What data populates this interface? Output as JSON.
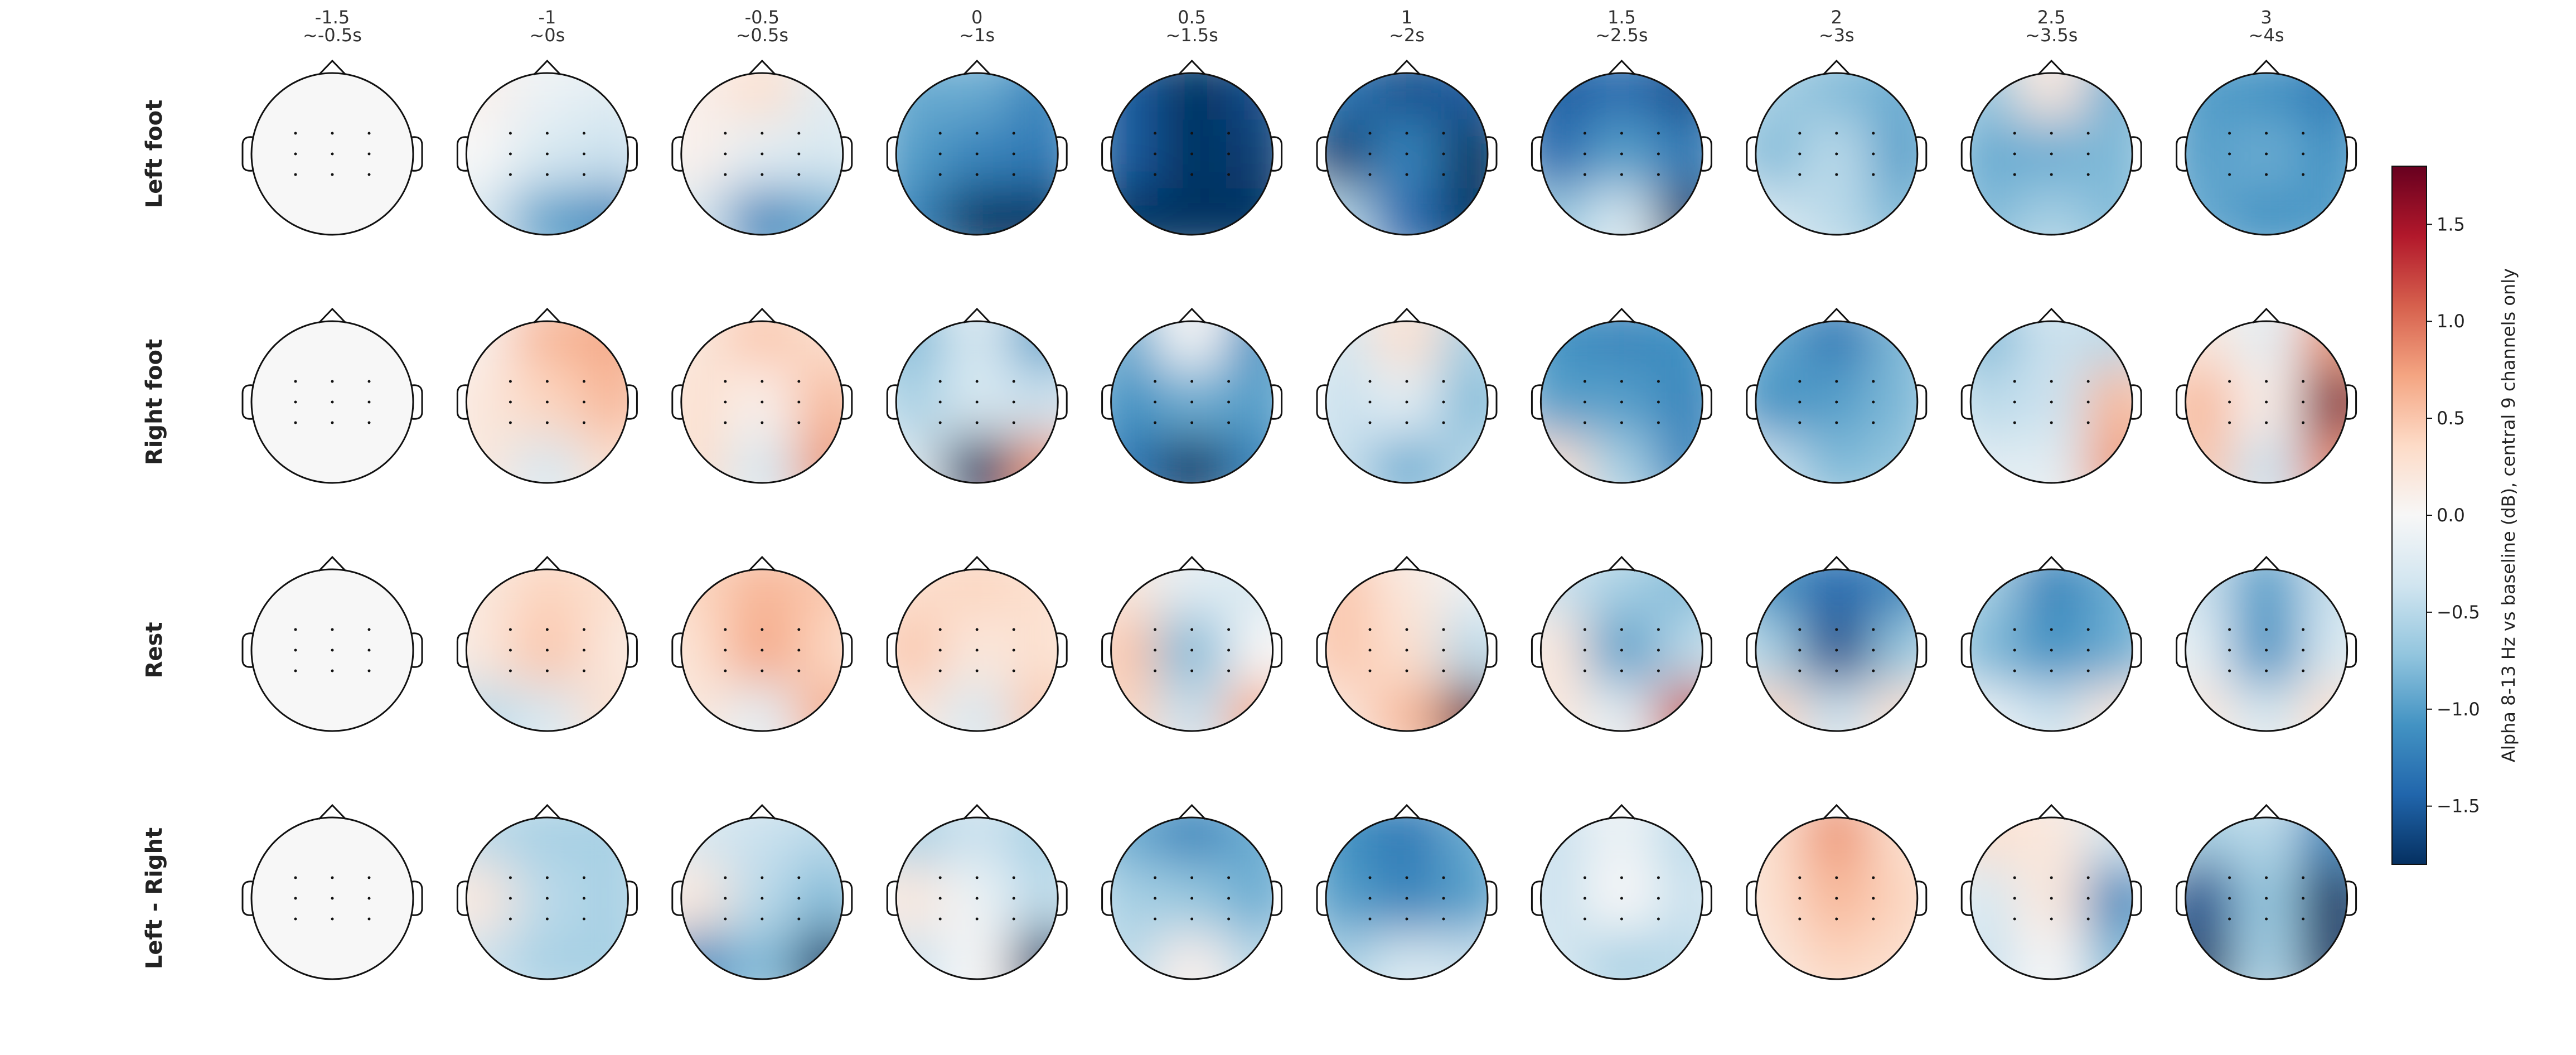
{
  "chart_data": {
    "type": "heatmap",
    "subtype": "topomap-grid",
    "columns": [
      {
        "value": "-1.5",
        "time": "~-0.5s"
      },
      {
        "value": "-1",
        "time": "~0s"
      },
      {
        "value": "-0.5",
        "time": "~0.5s"
      },
      {
        "value": "0",
        "time": "~1s"
      },
      {
        "value": "0.5",
        "time": "~1.5s"
      },
      {
        "value": "1",
        "time": "~2s"
      },
      {
        "value": "1.5",
        "time": "~2.5s"
      },
      {
        "value": "2",
        "time": "~3s"
      },
      {
        "value": "2.5",
        "time": "~3.5s"
      },
      {
        "value": "3",
        "time": "~4s"
      }
    ],
    "rows": [
      "Left foot",
      "Right foot",
      "Rest",
      "Left - Right"
    ],
    "colorbar": {
      "label": "Alpha 8-13 Hz vs baseline (dB), central 9 channels only",
      "range": [
        -1.8,
        1.8
      ],
      "ticks": [
        1.5,
        1.0,
        0.5,
        0.0,
        -0.5,
        -1.0,
        -1.5
      ],
      "tick_labels": [
        "1.5",
        "1.0",
        "0.5",
        "0.0",
        "−0.5",
        "−1.0",
        "−1.5"
      ],
      "colormap": "RdBu_r"
    },
    "channel_grid": {
      "rows": 3,
      "cols": 3
    },
    "approx_values_note_free": true,
    "grid_regions": [
      "front",
      "center",
      "back"
    ],
    "values": [
      [
        {
          "front": [
            0.0,
            0.0,
            0.0
          ],
          "center": [
            0.0,
            0.0,
            0.0
          ],
          "back": [
            0.0,
            0.0,
            0.0
          ]
        },
        {
          "front": [
            0.1,
            -0.1,
            -0.2
          ],
          "center": [
            0.0,
            -0.3,
            -0.4
          ],
          "back": [
            -0.3,
            -1.0,
            -1.2
          ]
        },
        {
          "front": [
            0.1,
            0.3,
            -0.2
          ],
          "center": [
            0.1,
            -0.2,
            -0.3
          ],
          "back": [
            -0.3,
            -1.2,
            -0.9
          ]
        },
        {
          "front": [
            -0.9,
            -0.9,
            -1.2
          ],
          "center": [
            -1.0,
            -1.2,
            -1.3
          ],
          "back": [
            -1.2,
            -1.8,
            -1.8
          ]
        },
        {
          "front": [
            -1.5,
            -1.8,
            -1.6
          ],
          "center": [
            -1.5,
            -1.8,
            -1.7
          ],
          "back": [
            -1.8,
            -1.8,
            -1.8
          ]
        },
        {
          "front": [
            -1.3,
            -1.6,
            -1.5
          ],
          "center": [
            -1.7,
            -1.2,
            -1.8
          ],
          "back": [
            -0.5,
            -1.4,
            -1.8
          ]
        },
        {
          "front": [
            -1.5,
            -1.4,
            -1.6
          ],
          "center": [
            -1.4,
            -1.0,
            -1.3
          ],
          "back": [
            -0.7,
            -0.3,
            -1.8
          ]
        },
        {
          "front": [
            -0.6,
            -0.8,
            -0.9
          ],
          "center": [
            -0.8,
            -0.5,
            -1.0
          ],
          "back": [
            -0.3,
            -0.5,
            -0.8
          ]
        },
        {
          "front": [
            -0.7,
            0.2,
            -0.9
          ],
          "center": [
            -0.9,
            -0.9,
            -0.8
          ],
          "back": [
            -0.8,
            -0.6,
            -0.8
          ]
        },
        {
          "front": [
            -1.0,
            -1.1,
            -1.3
          ],
          "center": [
            -1.0,
            -0.9,
            -1.1
          ],
          "back": [
            -0.9,
            -1.1,
            -1.0
          ]
        }
      ],
      [
        {
          "front": [
            0.0,
            0.0,
            0.0
          ],
          "center": [
            0.0,
            0.0,
            0.0
          ],
          "back": [
            0.0,
            0.0,
            0.0
          ]
        },
        {
          "front": [
            0.1,
            0.6,
            0.7
          ],
          "center": [
            0.2,
            0.4,
            0.6
          ],
          "back": [
            0.2,
            -0.3,
            0.3
          ]
        },
        {
          "front": [
            0.2,
            0.5,
            0.3
          ],
          "center": [
            0.3,
            0.1,
            0.6
          ],
          "back": [
            0.3,
            -0.3,
            0.8
          ]
        },
        {
          "front": [
            -0.8,
            -0.3,
            -1.0
          ],
          "center": [
            -0.6,
            -0.3,
            -0.4
          ],
          "back": [
            -0.2,
            -1.8,
            0.8
          ]
        },
        {
          "front": [
            -0.9,
            0.0,
            -1.1
          ],
          "center": [
            -1.1,
            -0.9,
            -1.0
          ],
          "back": [
            -1.3,
            -1.8,
            -1.2
          ]
        },
        {
          "front": [
            -0.3,
            0.3,
            -0.6
          ],
          "center": [
            -0.4,
            -0.2,
            -0.8
          ],
          "back": [
            -0.4,
            -0.9,
            -0.5
          ]
        },
        {
          "front": [
            -1.1,
            -1.2,
            -1.1
          ],
          "center": [
            -1.0,
            -1.0,
            -1.2
          ],
          "back": [
            0.3,
            -0.6,
            -1.2
          ]
        },
        {
          "front": [
            -0.9,
            -1.3,
            -0.8
          ],
          "center": [
            -1.1,
            -1.0,
            -0.8
          ],
          "back": [
            -0.4,
            -0.8,
            -0.7
          ]
        },
        {
          "front": [
            -0.8,
            -0.4,
            -0.5
          ],
          "center": [
            -0.5,
            -0.4,
            0.6
          ],
          "back": [
            -0.2,
            -0.2,
            0.8
          ]
        },
        {
          "front": [
            0.2,
            -0.2,
            0.8
          ],
          "center": [
            0.6,
            0.1,
            1.7
          ],
          "back": [
            0.5,
            -0.4,
            0.9
          ]
        }
      ],
      [
        {
          "front": [
            0.0,
            0.0,
            0.0
          ],
          "center": [
            0.0,
            0.0,
            0.0
          ],
          "back": [
            0.0,
            0.0,
            0.0
          ]
        },
        {
          "front": [
            0.2,
            0.4,
            0.3
          ],
          "center": [
            0.2,
            0.5,
            0.2
          ],
          "back": [
            -0.5,
            -0.3,
            0.3
          ]
        },
        {
          "front": [
            0.4,
            0.6,
            0.5
          ],
          "center": [
            0.3,
            0.7,
            0.4
          ],
          "back": [
            0.2,
            -0.2,
            0.7
          ]
        },
        {
          "front": [
            0.3,
            0.4,
            0.3
          ],
          "center": [
            0.5,
            0.2,
            0.3
          ],
          "back": [
            0.2,
            -0.3,
            0.5
          ]
        },
        {
          "front": [
            0.2,
            -0.2,
            -0.3
          ],
          "center": [
            0.5,
            -0.8,
            0.0
          ],
          "back": [
            0.4,
            -0.4,
            0.7
          ]
        },
        {
          "front": [
            0.5,
            0.2,
            -0.1
          ],
          "center": [
            0.5,
            0.3,
            -0.5
          ],
          "back": [
            0.2,
            0.6,
            1.8
          ]
        },
        {
          "front": [
            -0.4,
            -0.6,
            -0.8
          ],
          "center": [
            0.2,
            -1.0,
            -0.5
          ],
          "back": [
            0.2,
            -0.2,
            1.2
          ]
        },
        {
          "front": [
            -1.1,
            -1.4,
            -1.2
          ],
          "center": [
            -0.6,
            -1.6,
            -0.7
          ],
          "back": [
            0.4,
            -0.4,
            0.3
          ]
        },
        {
          "front": [
            -0.6,
            -1.2,
            -0.9
          ],
          "center": [
            -0.8,
            -1.1,
            -0.9
          ],
          "back": [
            -0.1,
            -0.4,
            0.2
          ]
        },
        {
          "front": [
            -0.4,
            -1.0,
            -0.4
          ],
          "center": [
            -0.2,
            -1.1,
            -0.3
          ],
          "back": [
            0.2,
            -0.3,
            0.3
          ]
        }
      ],
      [
        {
          "front": [
            0.0,
            0.0,
            0.0
          ],
          "center": [
            0.0,
            0.0,
            0.0
          ],
          "back": [
            0.0,
            0.0,
            0.0
          ]
        },
        {
          "front": [
            -0.5,
            -0.6,
            -0.6
          ],
          "center": [
            0.2,
            -0.5,
            -0.6
          ],
          "back": [
            -0.4,
            -0.6,
            -0.6
          ]
        },
        {
          "front": [
            -0.3,
            -0.4,
            -0.5
          ],
          "center": [
            0.2,
            -0.5,
            -0.8
          ],
          "back": [
            -1.2,
            -0.8,
            -1.8
          ]
        },
        {
          "front": [
            -0.6,
            -0.4,
            -0.6
          ],
          "center": [
            0.2,
            -0.1,
            -0.5
          ],
          "back": [
            -0.4,
            0.0,
            -1.8
          ]
        },
        {
          "front": [
            -0.9,
            -1.2,
            -0.9
          ],
          "center": [
            -0.6,
            -0.7,
            -0.9
          ],
          "back": [
            -0.5,
            0.1,
            -0.5
          ]
        },
        {
          "front": [
            -1.1,
            -1.3,
            -0.9
          ],
          "center": [
            -1.0,
            -1.2,
            -1.0
          ],
          "back": [
            -0.6,
            -0.3,
            -0.4
          ]
        },
        {
          "front": [
            -0.4,
            -0.1,
            -0.5
          ],
          "center": [
            -0.4,
            0.0,
            -0.4
          ],
          "back": [
            -0.3,
            -0.6,
            -0.5
          ]
        },
        {
          "front": [
            0.3,
            0.8,
            0.3
          ],
          "center": [
            0.3,
            0.6,
            0.4
          ],
          "back": [
            0.2,
            0.4,
            0.3
          ]
        },
        {
          "front": [
            0.3,
            0.2,
            -0.3
          ],
          "center": [
            -0.3,
            0.2,
            -1.2
          ],
          "back": [
            -0.4,
            0.0,
            -0.8
          ]
        },
        {
          "front": [
            -0.6,
            -0.5,
            -1.2
          ],
          "center": [
            -1.6,
            -0.7,
            -1.8
          ],
          "back": [
            -1.8,
            -0.6,
            -1.8
          ]
        }
      ]
    ]
  }
}
